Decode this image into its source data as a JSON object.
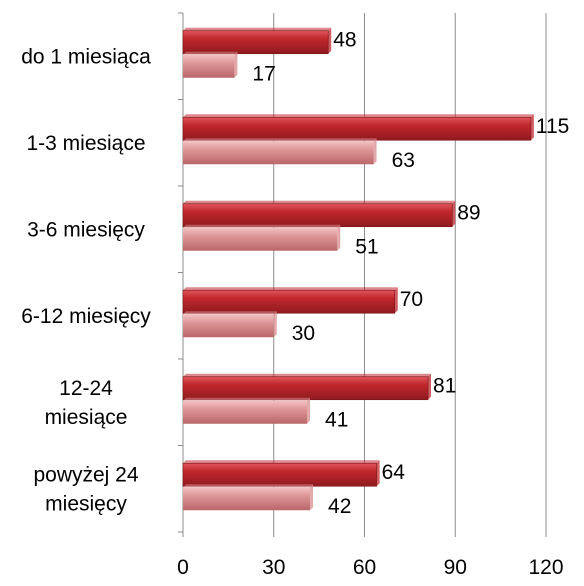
{
  "chart_data": {
    "type": "bar",
    "orientation": "horizontal",
    "categories": [
      [
        "do 1 miesiąca"
      ],
      [
        "1-3 miesiące"
      ],
      [
        "3-6 miesięcy"
      ],
      [
        "6-12 miesięcy"
      ],
      [
        "12-24",
        "miesiące"
      ],
      [
        "powyżej 24",
        "miesięcy"
      ]
    ],
    "series": [
      {
        "values": [
          48,
          115,
          89,
          70,
          81,
          64
        ],
        "color": "#c0272d"
      },
      {
        "values": [
          17,
          63,
          51,
          30,
          41,
          42
        ],
        "color": "#d98c8e"
      }
    ],
    "xlim": [
      0,
      120
    ],
    "xticks": [
      0,
      30,
      60,
      90,
      120
    ],
    "grid": "vertical",
    "legend": "none"
  }
}
